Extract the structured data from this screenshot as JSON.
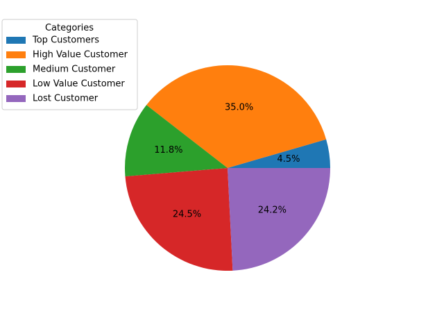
{
  "chart_data": {
    "type": "pie",
    "title": "",
    "categories": [
      "Top Customers",
      "High Value Customer",
      "Medium Customer",
      "Low Value Customer",
      "Lost Customer"
    ],
    "values": [
      4.5,
      35.0,
      11.8,
      24.5,
      24.2
    ],
    "value_labels": [
      "4.5%",
      "35.0%",
      "11.8%",
      "24.5%",
      "24.2%"
    ],
    "colors": [
      "#1f77b4",
      "#ff7f0e",
      "#2ca02c",
      "#d62728",
      "#9467bd"
    ],
    "start_angle_deg": 0,
    "direction": "counterclockwise",
    "legend": {
      "title": "Categories",
      "placement": "upper-left"
    }
  }
}
